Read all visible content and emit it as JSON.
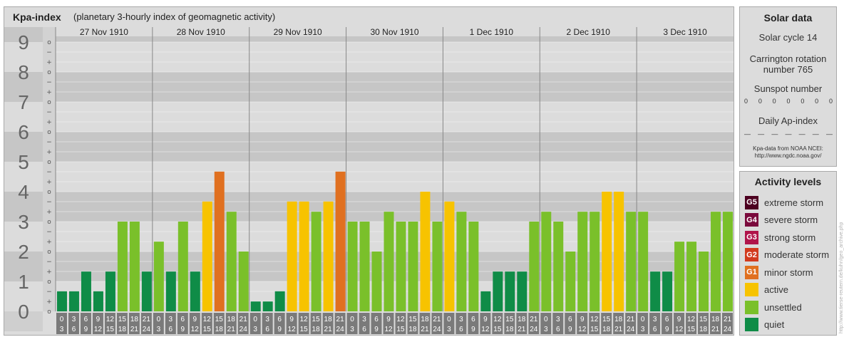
{
  "header": {
    "title": "Kpa-index",
    "subtitle": "(planetary 3-hourly index of geomagnetic activity)"
  },
  "chart_data": {
    "type": "bar",
    "title": "Kpa-index",
    "subtitle": "(planetary 3-hourly index of geomagnetic activity)",
    "ylim": [
      0,
      9
    ],
    "y_ticks": [
      "0",
      "1",
      "2",
      "3",
      "4",
      "5",
      "6",
      "7",
      "8",
      "9"
    ],
    "minor_tick_labels": [
      "o",
      "+",
      "−"
    ],
    "days": [
      "27 Nov 1910",
      "28 Nov 1910",
      "29 Nov 1910",
      "30 Nov 1910",
      "1 Dec 1910",
      "2 Dec 1910",
      "3 Dec 1910"
    ],
    "interval_start": [
      "0",
      "3",
      "6",
      "9",
      "12",
      "15",
      "18",
      "21"
    ],
    "interval_end": [
      "3",
      "6",
      "9",
      "12",
      "15",
      "18",
      "21",
      "24"
    ],
    "values": [
      [
        0.67,
        0.67,
        1.33,
        0.67,
        1.33,
        3.0,
        3.0,
        1.33
      ],
      [
        2.33,
        1.33,
        3.0,
        1.33,
        3.67,
        4.67,
        3.33,
        2.0
      ],
      [
        0.33,
        0.33,
        0.67,
        3.67,
        3.67,
        3.33,
        3.67,
        4.67
      ],
      [
        3.0,
        3.0,
        2.0,
        3.33,
        3.0,
        3.0,
        4.0,
        3.0
      ],
      [
        3.67,
        3.33,
        3.0,
        0.67,
        1.33,
        1.33,
        1.33,
        3.0
      ],
      [
        3.33,
        3.0,
        2.0,
        3.33,
        3.33,
        4.0,
        4.0,
        3.33
      ],
      [
        3.33,
        1.33,
        1.33,
        2.33,
        2.33,
        2.0,
        3.33,
        3.33
      ]
    ],
    "grid": true
  },
  "solar": {
    "title": "Solar data",
    "cycle": "Solar cycle 14",
    "carrington_line1": "Carrington rotation",
    "carrington_line2": "number 765",
    "sunspot_label": "Sunspot number",
    "sunspot_values": [
      "0",
      "0",
      "0",
      "0",
      "0",
      "0",
      "0"
    ],
    "ap_label": "Daily Ap-index",
    "ap_values": [
      "—",
      "—",
      "—",
      "—",
      "—",
      "—",
      "—"
    ],
    "source_line1": "Kpa-data from NOAA NCEI:",
    "source_line2": "http://www.ngdc.noaa.gov/"
  },
  "activity": {
    "title": "Activity levels",
    "levels": [
      {
        "badge": "G5",
        "label": "extreme storm",
        "color": "#4d0020"
      },
      {
        "badge": "G4",
        "label": "severe storm",
        "color": "#7a0a3c"
      },
      {
        "badge": "G3",
        "label": "strong storm",
        "color": "#b0144a"
      },
      {
        "badge": "G2",
        "label": "moderate storm",
        "color": "#d23a1e"
      },
      {
        "badge": "G1",
        "label": "minor storm",
        "color": "#e07020"
      },
      {
        "badge": "",
        "label": "active",
        "color": "#f7c300"
      },
      {
        "badge": "",
        "label": "unsettled",
        "color": "#7ac02a"
      },
      {
        "badge": "",
        "label": "quiet",
        "color": "#0f8c47"
      }
    ]
  },
  "credit": "http://www.tierse-reutern.de/kuhn/geo_archive.php",
  "colors": {
    "quiet": "#0f8c47",
    "unsettled": "#7ac02a",
    "active": "#f7c300",
    "minor_storm": "#e07020",
    "tick_bg": "#7a7a7a"
  }
}
